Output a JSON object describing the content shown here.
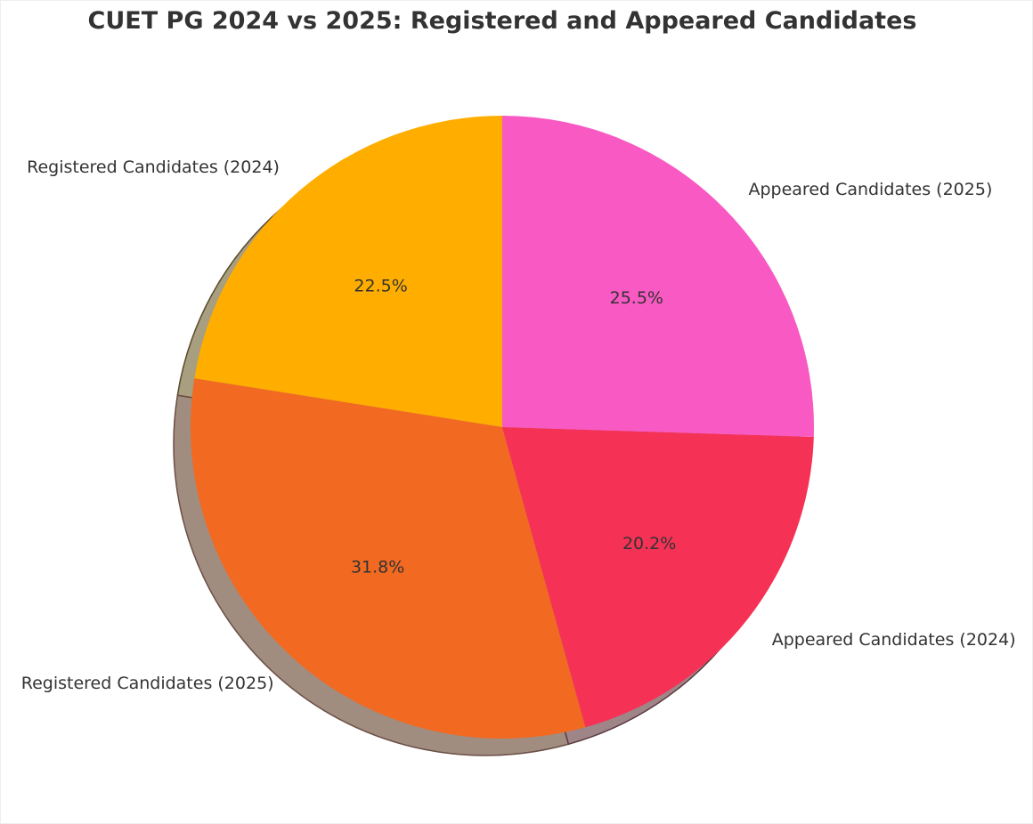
{
  "chart_data": {
    "type": "pie",
    "title": "CUET PG 2024 vs 2025: Registered and Appeared Candidates",
    "categories": [
      "Registered Candidates (2024)",
      "Registered Candidates (2025)",
      "Appeared Candidates (2024)",
      "Appeared Candidates (2025)"
    ],
    "values": [
      22.5,
      31.8,
      20.2,
      25.5
    ],
    "labels_pct": [
      "22.5%",
      "31.8%",
      "20.2%",
      "25.5%"
    ],
    "colors": [
      "#FFAE00",
      "#F26921",
      "#F53255",
      "#F859C3"
    ],
    "start_angle": 90,
    "shadow": true
  }
}
